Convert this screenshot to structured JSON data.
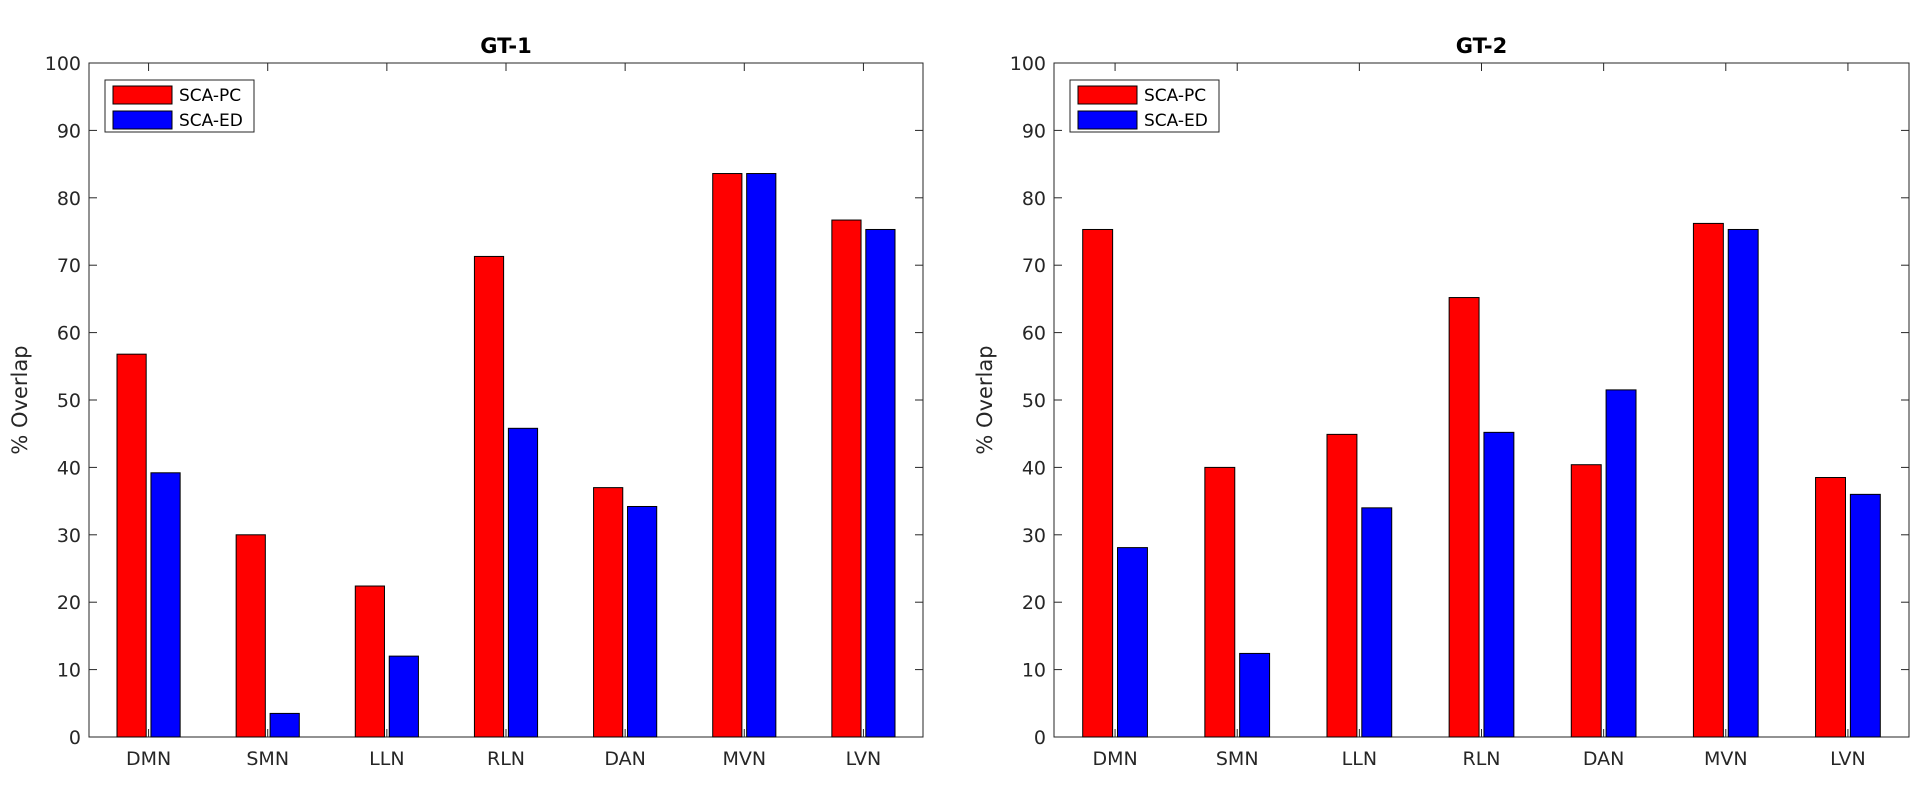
{
  "chart_data": [
    {
      "type": "bar",
      "title": "GT-1",
      "xlabel": "",
      "ylabel": "% Overlap",
      "ylim": [
        0,
        100
      ],
      "yticks": [
        "0",
        "10",
        "20",
        "30",
        "40",
        "50",
        "60",
        "70",
        "80",
        "90",
        "100"
      ],
      "categories": [
        "DMN",
        "SMN",
        "LLN",
        "RLN",
        "DAN",
        "MVN",
        "LVN"
      ],
      "series": [
        {
          "name": "SCA-PC",
          "color": "#ff0000",
          "values": [
            56.8,
            30.0,
            22.4,
            71.3,
            37.0,
            83.6,
            76.7
          ]
        },
        {
          "name": "SCA-ED",
          "color": "#0000ff",
          "values": [
            39.2,
            3.5,
            12.0,
            45.8,
            34.2,
            83.6,
            75.3
          ]
        }
      ],
      "legend": "top-left",
      "grid": false
    },
    {
      "type": "bar",
      "title": "GT-2",
      "xlabel": "",
      "ylabel": "% Overlap",
      "ylim": [
        0,
        100
      ],
      "yticks": [
        "0",
        "10",
        "20",
        "30",
        "40",
        "50",
        "60",
        "70",
        "80",
        "90",
        "100"
      ],
      "categories": [
        "DMN",
        "SMN",
        "LLN",
        "RLN",
        "DAN",
        "MVN",
        "LVN"
      ],
      "series": [
        {
          "name": "SCA-PC",
          "color": "#ff0000",
          "values": [
            75.3,
            40.0,
            44.9,
            65.2,
            40.4,
            76.2,
            38.5
          ]
        },
        {
          "name": "SCA-ED",
          "color": "#0000ff",
          "values": [
            28.1,
            12.4,
            34.0,
            45.2,
            51.5,
            75.3,
            36.0
          ]
        }
      ],
      "legend": "top-left",
      "grid": false
    }
  ]
}
